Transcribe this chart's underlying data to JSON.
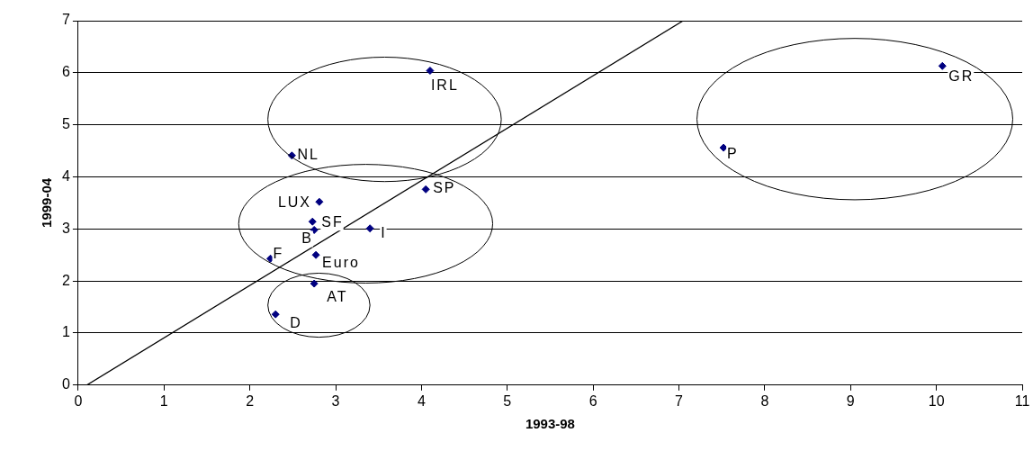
{
  "chart_data": {
    "type": "scatter",
    "xlabel": "1993-98",
    "ylabel": "1999-04",
    "xlim": [
      0,
      11
    ],
    "xticks": [
      0,
      1,
      2,
      3,
      4,
      5,
      6,
      7,
      8,
      9,
      10,
      11
    ],
    "ylim": [
      0,
      7
    ],
    "yticks": [
      0,
      1,
      2,
      3,
      4,
      5,
      6,
      7
    ],
    "grid": "y",
    "legend": false,
    "series": [
      {
        "color": "#000080",
        "marker": "diamond",
        "x": [
          4.1,
          2.49,
          4.05,
          2.81,
          2.73,
          2.75,
          3.4,
          2.24,
          2.77,
          2.75,
          2.3,
          10.07,
          7.52
        ],
        "values": [
          6.04,
          4.41,
          3.76,
          3.52,
          3.14,
          2.98,
          3.01,
          2.43,
          2.5,
          1.95,
          1.36,
          6.13,
          4.56
        ]
      },
      {
        "type": "line",
        "marker": "none",
        "color": "#000000",
        "x": [
          0.1,
          7.05
        ],
        "values": [
          0,
          7
        ]
      }
    ],
    "annotations": [
      {
        "text": "IRL",
        "x": 4.1,
        "y": 6.04
      },
      {
        "text": "NL",
        "x": 2.49,
        "y": 4.41
      },
      {
        "text": "SP",
        "x": 4.05,
        "y": 3.76
      },
      {
        "text": "LUX",
        "x": 2.81,
        "y": 3.52
      },
      {
        "text": "SF",
        "x": 2.73,
        "y": 3.14
      },
      {
        "text": "B",
        "x": 2.75,
        "y": 2.98
      },
      {
        "text": "I",
        "x": 3.4,
        "y": 3.01
      },
      {
        "text": "F",
        "x": 2.24,
        "y": 2.43
      },
      {
        "text": "Euro",
        "x": 2.77,
        "y": 2.5
      },
      {
        "text": "AT",
        "x": 2.75,
        "y": 1.95
      },
      {
        "text": "D",
        "x": 2.3,
        "y": 1.36
      },
      {
        "text": "GR",
        "x": 10.07,
        "y": 6.13
      },
      {
        "text": "P",
        "x": 7.52,
        "y": 4.56
      }
    ]
  }
}
